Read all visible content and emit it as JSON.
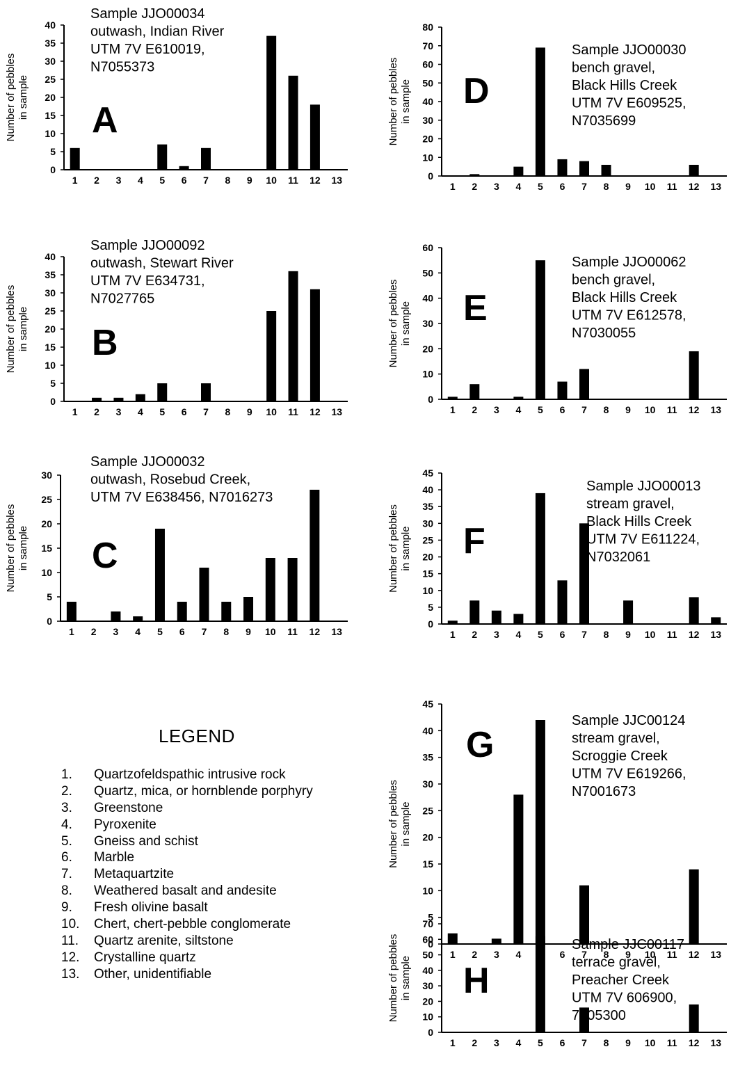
{
  "legend": {
    "title": "LEGEND",
    "items": [
      {
        "num": "1.",
        "label": "Quartzofeldspathic intrusive rock"
      },
      {
        "num": "2.",
        "label": "Quartz, mica, or hornblende porphyry"
      },
      {
        "num": "3.",
        "label": "Greenstone"
      },
      {
        "num": "4.",
        "label": "Pyroxenite"
      },
      {
        "num": "5.",
        "label": "Gneiss and schist"
      },
      {
        "num": "6.",
        "label": "Marble"
      },
      {
        "num": "7.",
        "label": "Metaquartzite"
      },
      {
        "num": "8.",
        "label": "Weathered basalt and andesite"
      },
      {
        "num": "9.",
        "label": "Fresh olivine basalt"
      },
      {
        "num": "10.",
        "label": "Chert, chert-pebble conglomerate"
      },
      {
        "num": "11.",
        "label": "Quartz arenite, siltstone"
      },
      {
        "num": "12.",
        "label": "Crystalline quartz"
      },
      {
        "num": "13.",
        "label": "Other, unidentifiable"
      }
    ]
  },
  "chart_data": [
    {
      "id": "A",
      "type": "bar",
      "categories": [
        "1",
        "2",
        "3",
        "4",
        "5",
        "6",
        "7",
        "8",
        "9",
        "10",
        "11",
        "12",
        "13"
      ],
      "values": [
        6,
        0,
        0,
        0,
        7,
        1,
        6,
        0,
        0,
        37,
        26,
        18,
        0
      ],
      "yticks": [
        0,
        5,
        10,
        15,
        20,
        25,
        30,
        35,
        40
      ],
      "ylim": [
        0,
        40
      ],
      "ylabel": [
        "Number of pebbles",
        "in sample"
      ],
      "annotation": [
        "Sample JJO00034",
        "outwash, Indian River",
        "UTM 7V E610019,",
        "N7055373"
      ],
      "bar_color": "#000000"
    },
    {
      "id": "B",
      "type": "bar",
      "categories": [
        "1",
        "2",
        "3",
        "4",
        "5",
        "6",
        "7",
        "8",
        "9",
        "10",
        "11",
        "12",
        "13"
      ],
      "values": [
        0,
        1,
        1,
        2,
        5,
        0,
        5,
        0,
        0,
        25,
        36,
        31,
        0
      ],
      "yticks": [
        0,
        5,
        10,
        15,
        20,
        25,
        30,
        35,
        40
      ],
      "ylim": [
        0,
        40
      ],
      "ylabel": [
        "Number of pebbles",
        "in sample"
      ],
      "annotation": [
        "Sample JJO00092",
        "outwash, Stewart River",
        "UTM 7V E634731,",
        "N7027765"
      ],
      "bar_color": "#000000"
    },
    {
      "id": "C",
      "type": "bar",
      "categories": [
        "1",
        "2",
        "3",
        "4",
        "5",
        "6",
        "7",
        "8",
        "9",
        "10",
        "11",
        "12",
        "13"
      ],
      "values": [
        4,
        0,
        2,
        1,
        19,
        4,
        11,
        4,
        5,
        13,
        13,
        27,
        0
      ],
      "yticks": [
        0,
        5,
        10,
        15,
        20,
        25,
        30
      ],
      "ylim": [
        0,
        30
      ],
      "ylabel": [
        "Number of pebbles",
        "in sample"
      ],
      "annotation": [
        "Sample JJO00032",
        "outwash, Rosebud Creek,",
        "UTM 7V E638456, N7016273"
      ],
      "bar_color": "#000000"
    },
    {
      "id": "D",
      "type": "bar",
      "categories": [
        "1",
        "2",
        "3",
        "4",
        "5",
        "6",
        "7",
        "8",
        "9",
        "10",
        "11",
        "12",
        "13"
      ],
      "values": [
        0,
        1,
        0,
        5,
        69,
        9,
        8,
        6,
        0,
        0,
        0,
        6,
        0
      ],
      "yticks": [
        0,
        10,
        20,
        30,
        40,
        50,
        60,
        70,
        80
      ],
      "ylim": [
        0,
        80
      ],
      "ylabel": [
        "Number of pebbles",
        "in sample"
      ],
      "annotation": [
        "Sample JJO00030",
        "bench gravel,",
        "Black Hills Creek",
        "UTM 7V E609525,",
        "N7035699"
      ],
      "bar_color": "#000000"
    },
    {
      "id": "E",
      "type": "bar",
      "categories": [
        "1",
        "2",
        "3",
        "4",
        "5",
        "6",
        "7",
        "8",
        "9",
        "10",
        "11",
        "12",
        "13"
      ],
      "values": [
        1,
        6,
        0,
        1,
        55,
        7,
        12,
        0,
        0,
        0,
        0,
        19,
        0
      ],
      "yticks": [
        0,
        10,
        20,
        30,
        40,
        50,
        60
      ],
      "ylim": [
        0,
        60
      ],
      "ylabel": [
        "Number of pebbles",
        "in sample"
      ],
      "annotation": [
        "Sample JJO00062",
        "bench gravel,",
        "Black Hills Creek",
        "UTM 7V E612578,",
        "N7030055"
      ],
      "bar_color": "#000000"
    },
    {
      "id": "F",
      "type": "bar",
      "categories": [
        "1",
        "2",
        "3",
        "4",
        "5",
        "6",
        "7",
        "8",
        "9",
        "10",
        "11",
        "12",
        "13"
      ],
      "values": [
        1,
        7,
        4,
        3,
        39,
        13,
        30,
        0,
        7,
        0,
        0,
        8,
        2
      ],
      "yticks": [
        0,
        5,
        10,
        15,
        20,
        25,
        30,
        35,
        40,
        45
      ],
      "ylim": [
        0,
        45
      ],
      "ylabel": [
        "Number of pebbles",
        "in sample"
      ],
      "annotation": [
        "Sample JJO00013",
        "stream gravel,",
        "Black Hills Creek",
        "UTM 7V E611224,",
        "N7032061"
      ],
      "bar_color": "#000000"
    },
    {
      "id": "G",
      "type": "bar",
      "categories": [
        "1",
        "2",
        "3",
        "4",
        "5",
        "6",
        "7",
        "8",
        "9",
        "10",
        "11",
        "12",
        "13"
      ],
      "values": [
        2,
        0,
        1,
        28,
        42,
        0,
        11,
        0,
        0,
        0,
        0,
        14,
        0
      ],
      "yticks": [
        0,
        5,
        10,
        15,
        20,
        25,
        30,
        35,
        40,
        45
      ],
      "ylim": [
        0,
        45
      ],
      "ylabel": [
        "Number of pebbles",
        "in sample"
      ],
      "annotation": [
        "Sample JJC00124",
        "stream gravel,",
        "Scroggie Creek",
        "UTM 7V E619266,",
        "N7001673"
      ],
      "bar_color": "#000000"
    },
    {
      "id": "H",
      "type": "bar",
      "categories": [
        "1",
        "2",
        "3",
        "4",
        "5",
        "6",
        "7",
        "8",
        "9",
        "10",
        "11",
        "12",
        "13"
      ],
      "values": [
        0,
        0,
        0,
        0,
        62,
        0,
        16,
        0,
        0,
        0,
        0,
        18,
        0
      ],
      "yticks": [
        0,
        10,
        20,
        30,
        40,
        50,
        60,
        70
      ],
      "ylim": [
        0,
        70
      ],
      "ylabel": [
        "Number of pebbles",
        "in sample"
      ],
      "annotation": [
        "Sample JJC00117",
        "terrace gravel,",
        "Preacher Creek",
        "UTM 7V 606900,",
        "7005300"
      ],
      "bar_color": "#000000"
    }
  ]
}
